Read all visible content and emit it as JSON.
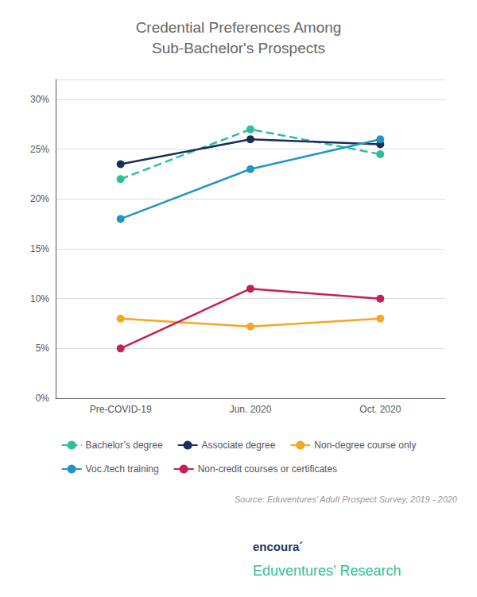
{
  "chart_data": {
    "type": "line",
    "title": "Credential Preferences Among\nSub-Bachelor's Prospects",
    "categories": [
      "Pre-COVID-19",
      "Jun. 2020",
      "Oct. 2020"
    ],
    "series": [
      {
        "name": "Bachelor’s degree",
        "color": "#2dbf9a",
        "values": [
          0.22,
          0.27,
          0.245
        ],
        "marker": "circle",
        "line_style": "dashed"
      },
      {
        "name": "Associate degree",
        "color": "#1a2e5a",
        "values": [
          0.235,
          0.26,
          0.255
        ],
        "marker": "circle",
        "line_style": "solid"
      },
      {
        "name": "Non-degree course only",
        "color": "#f5a623",
        "values": [
          0.08,
          0.072,
          0.08
        ],
        "marker": "circle",
        "line_style": "solid"
      },
      {
        "name": "Voc./tech training",
        "color": "#2196c4",
        "values": [
          0.18,
          0.23,
          0.26
        ],
        "marker": "circle",
        "line_style": "solid"
      },
      {
        "name": "Non-credit courses or certificates",
        "color": "#c42053",
        "values": [
          0.05,
          0.11,
          0.1
        ],
        "marker": "circle",
        "line_style": "solid"
      }
    ],
    "ylim": [
      0,
      0.32
    ],
    "yticks": [
      {
        "value": 0.0,
        "label": "0%"
      },
      {
        "value": 0.05,
        "label": "5%"
      },
      {
        "value": 0.1,
        "label": "10%"
      },
      {
        "value": 0.15,
        "label": "15%"
      },
      {
        "value": 0.2,
        "label": "20%"
      },
      {
        "value": 0.25,
        "label": "25%"
      },
      {
        "value": 0.3,
        "label": "30%"
      }
    ],
    "grid": true,
    "legend": "bottom",
    "annotations": [
      "Source: Eduventures’ Adult Prospect Survey, 2019 - 2020",
      "encoura´",
      "Eduventures’ Research"
    ]
  }
}
